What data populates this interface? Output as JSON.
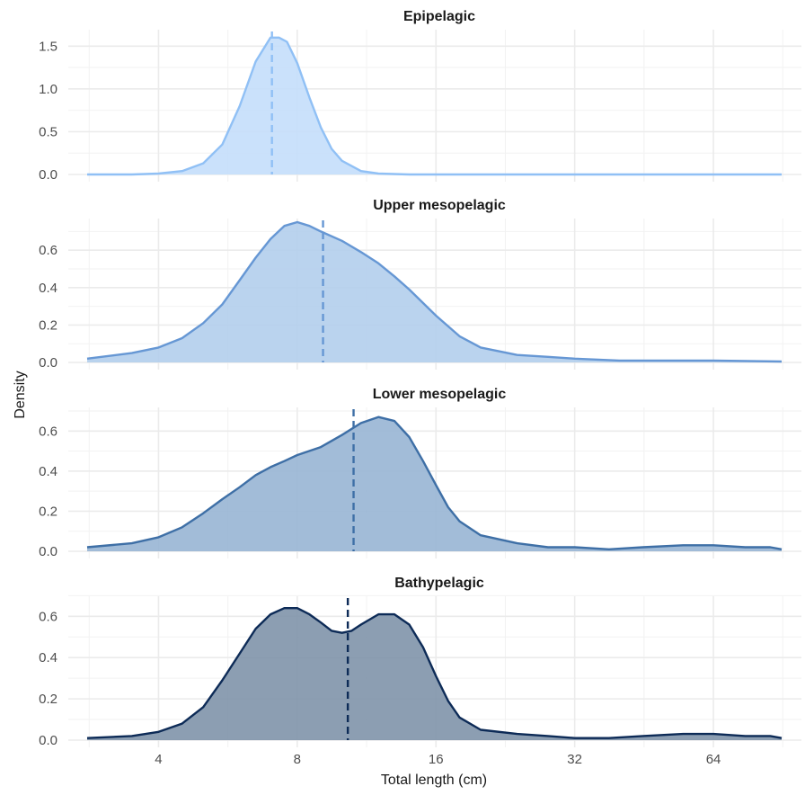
{
  "chart_data": {
    "type": "area",
    "xlabel": "Total length (cm)",
    "ylabel": "Density",
    "x_scale": "log2",
    "x_ticks": [
      4,
      8,
      16,
      32,
      64
    ],
    "xlim": [
      2.8,
      90
    ],
    "grid": true,
    "panels": [
      {
        "title": "Epipelagic",
        "color": "#90c0f5",
        "fill": "#c4defb",
        "ylim": [
          0,
          1.65
        ],
        "y_ticks": [
          "0.0",
          "0.5",
          "1.0",
          "1.5"
        ],
        "y_tick_values": [
          0,
          0.5,
          1.0,
          1.5
        ],
        "mean": 7.05,
        "x": [
          2.8,
          3.5,
          4.0,
          4.5,
          5.0,
          5.5,
          6.0,
          6.5,
          7.0,
          7.3,
          7.6,
          8.0,
          8.5,
          9.0,
          9.5,
          10.0,
          11.0,
          12.0,
          14.0,
          20.0,
          40.0,
          90.0
        ],
        "y": [
          0.0,
          0.0,
          0.01,
          0.04,
          0.13,
          0.35,
          0.8,
          1.32,
          1.6,
          1.6,
          1.55,
          1.3,
          0.9,
          0.55,
          0.3,
          0.16,
          0.04,
          0.01,
          0.0,
          0.0,
          0.0,
          0.0
        ]
      },
      {
        "title": "Upper mesopelagic",
        "color": "#6697d4",
        "fill": "#b3ceec",
        "ylim": [
          0,
          0.75
        ],
        "y_ticks": [
          "0.0",
          "0.2",
          "0.4",
          "0.6"
        ],
        "y_tick_values": [
          0,
          0.2,
          0.4,
          0.6
        ],
        "mean": 9.1,
        "x": [
          2.8,
          3.5,
          4.0,
          4.5,
          5.0,
          5.5,
          6.0,
          6.5,
          7.0,
          7.5,
          8.0,
          8.5,
          9.0,
          10.0,
          11.0,
          12.0,
          13.0,
          14.0,
          16.0,
          18.0,
          20.0,
          24.0,
          28.0,
          32.0,
          40.0,
          50.0,
          64.0,
          90.0
        ],
        "y": [
          0.02,
          0.05,
          0.08,
          0.13,
          0.21,
          0.31,
          0.44,
          0.56,
          0.66,
          0.73,
          0.75,
          0.73,
          0.7,
          0.65,
          0.59,
          0.53,
          0.46,
          0.39,
          0.25,
          0.14,
          0.08,
          0.04,
          0.03,
          0.02,
          0.01,
          0.01,
          0.01,
          0.005
        ]
      },
      {
        "title": "Lower mesopelagic",
        "color": "#3e6fa6",
        "fill": "#98b5d4",
        "ylim": [
          0,
          0.7
        ],
        "y_ticks": [
          "0.0",
          "0.2",
          "0.4",
          "0.6"
        ],
        "y_tick_values": [
          0,
          0.2,
          0.4,
          0.6
        ],
        "mean": 10.6,
        "x": [
          2.8,
          3.5,
          4.0,
          4.5,
          5.0,
          5.5,
          6.0,
          6.5,
          7.0,
          7.5,
          8.0,
          9.0,
          10.0,
          11.0,
          12.0,
          13.0,
          14.0,
          15.0,
          16.0,
          17.0,
          18.0,
          20.0,
          24.0,
          28.0,
          32.0,
          38.0,
          45.0,
          55.0,
          64.0,
          75.0,
          85.0,
          90.0
        ],
        "y": [
          0.02,
          0.04,
          0.07,
          0.12,
          0.19,
          0.26,
          0.32,
          0.38,
          0.42,
          0.45,
          0.48,
          0.52,
          0.58,
          0.64,
          0.67,
          0.65,
          0.57,
          0.45,
          0.33,
          0.22,
          0.15,
          0.08,
          0.04,
          0.02,
          0.02,
          0.01,
          0.02,
          0.03,
          0.03,
          0.02,
          0.02,
          0.01
        ]
      },
      {
        "title": "Bathypelagic",
        "color": "#0d2b57",
        "fill": "#7f93aa",
        "ylim": [
          0,
          0.68
        ],
        "y_ticks": [
          "0.0",
          "0.2",
          "0.4",
          "0.6"
        ],
        "y_tick_values": [
          0,
          0.2,
          0.4,
          0.6
        ],
        "mean": 10.3,
        "x": [
          2.8,
          3.5,
          4.0,
          4.5,
          5.0,
          5.5,
          6.0,
          6.5,
          7.0,
          7.5,
          8.0,
          8.5,
          9.0,
          9.5,
          10.0,
          10.5,
          11.0,
          12.0,
          13.0,
          14.0,
          15.0,
          16.0,
          17.0,
          18.0,
          20.0,
          24.0,
          28.0,
          32.0,
          38.0,
          45.0,
          55.0,
          64.0,
          75.0,
          85.0,
          90.0
        ],
        "y": [
          0.01,
          0.02,
          0.04,
          0.08,
          0.16,
          0.29,
          0.42,
          0.54,
          0.61,
          0.64,
          0.64,
          0.61,
          0.57,
          0.53,
          0.52,
          0.53,
          0.56,
          0.61,
          0.61,
          0.56,
          0.45,
          0.31,
          0.19,
          0.11,
          0.05,
          0.03,
          0.02,
          0.01,
          0.01,
          0.02,
          0.03,
          0.03,
          0.02,
          0.02,
          0.01
        ]
      }
    ]
  }
}
